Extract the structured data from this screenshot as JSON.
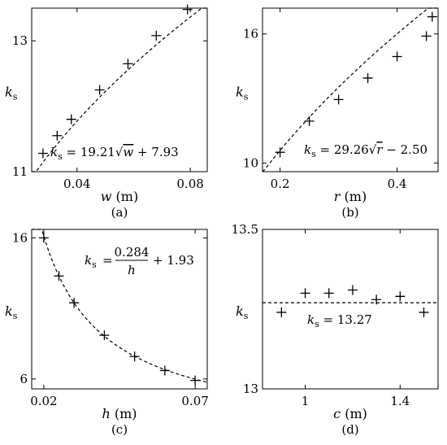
{
  "chart_data": [
    {
      "panel": "a",
      "caption": "(a)",
      "type": "scatter",
      "xlabel_var": "w",
      "xlabel_unit": "(m)",
      "ylabel_var": "k",
      "ylabel_sub": "s",
      "xlim": [
        0.024,
        0.086
      ],
      "ylim": [
        11,
        13.5
      ],
      "xticks": [
        "0.04",
        "0.08"
      ],
      "xtick_vals": [
        0.04,
        0.08
      ],
      "yticks": [
        "11",
        "13"
      ],
      "ytick_vals": [
        11,
        13
      ],
      "points": [
        [
          0.028,
          11.28
        ],
        [
          0.033,
          11.55
        ],
        [
          0.038,
          11.8
        ],
        [
          0.048,
          12.25
        ],
        [
          0.058,
          12.65
        ],
        [
          0.068,
          13.08
        ],
        [
          0.079,
          13.48
        ]
      ],
      "fit": {
        "model": "sqrt",
        "a": 19.21,
        "b": 7.93
      },
      "eq_lhs": "k",
      "eq_lhs_sub": "s",
      "eq_mid": " = 19.21",
      "eq_rad": "w",
      "eq_tail": " + 7.93"
    },
    {
      "panel": "b",
      "caption": "(b)",
      "type": "scatter",
      "xlabel_var": "r",
      "xlabel_unit": "(m)",
      "ylabel_var": "k",
      "ylabel_sub": "s",
      "xlim": [
        0.17,
        0.47
      ],
      "ylim": [
        9.6,
        17.2
      ],
      "xticks": [
        "0.2",
        "0.4"
      ],
      "xtick_vals": [
        0.2,
        0.4
      ],
      "yticks": [
        "10",
        "16"
      ],
      "ytick_vals": [
        10,
        16
      ],
      "points": [
        [
          0.2,
          10.5
        ],
        [
          0.25,
          11.95
        ],
        [
          0.3,
          12.95
        ],
        [
          0.35,
          13.95
        ],
        [
          0.4,
          14.95
        ],
        [
          0.45,
          15.9
        ],
        [
          0.46,
          16.8
        ]
      ],
      "fit": {
        "model": "sqrt",
        "a": 29.26,
        "b": -2.5
      },
      "eq_lhs": "k",
      "eq_lhs_sub": "s",
      "eq_mid": " = 29.26",
      "eq_rad": "r",
      "eq_tail": " − 2.50"
    },
    {
      "panel": "c",
      "caption": "(c)",
      "type": "scatter",
      "xlabel_var": "h",
      "xlabel_unit": "(m)",
      "ylabel_var": "k",
      "ylabel_sub": "s",
      "xlim": [
        0.016,
        0.074
      ],
      "ylim": [
        5.3,
        16.6
      ],
      "xticks": [
        "0.02",
        "0.07"
      ],
      "xtick_vals": [
        0.02,
        0.07
      ],
      "yticks": [
        "16",
        "6"
      ],
      "ytick_vals": [
        16,
        6
      ],
      "points": [
        [
          0.02,
          16.0
        ],
        [
          0.025,
          13.3
        ],
        [
          0.03,
          11.4
        ],
        [
          0.04,
          9.1
        ],
        [
          0.05,
          7.6
        ],
        [
          0.06,
          6.6
        ],
        [
          0.07,
          5.9
        ]
      ],
      "fit": {
        "model": "recip",
        "a": 0.284,
        "b": 1.93
      },
      "eq_lhs": "k",
      "eq_lhs_sub": "s",
      "eq_num": "0.284",
      "eq_den": "h",
      "eq_tail": "+ 1.93"
    },
    {
      "panel": "d",
      "caption": "(d)",
      "type": "scatter",
      "xlabel_var": "c",
      "xlabel_unit": "(m)",
      "ylabel_var": "k",
      "ylabel_sub": "s",
      "xlim": [
        0.82,
        1.56
      ],
      "ylim": [
        13.0,
        13.5
      ],
      "xticks": [
        "1",
        "1.4"
      ],
      "xtick_vals": [
        1.0,
        1.4
      ],
      "yticks": [
        "13.5",
        "13"
      ],
      "ytick_vals": [
        13.5,
        13.0
      ],
      "points": [
        [
          0.9,
          13.24
        ],
        [
          1.0,
          13.3
        ],
        [
          1.1,
          13.3
        ],
        [
          1.2,
          13.31
        ],
        [
          1.3,
          13.28
        ],
        [
          1.4,
          13.29
        ],
        [
          1.5,
          13.24
        ]
      ],
      "fit": {
        "model": "const",
        "a": 13.27
      },
      "eq_lhs": "k",
      "eq_lhs_sub": "s",
      "eq_mid": " = 13.27"
    }
  ]
}
